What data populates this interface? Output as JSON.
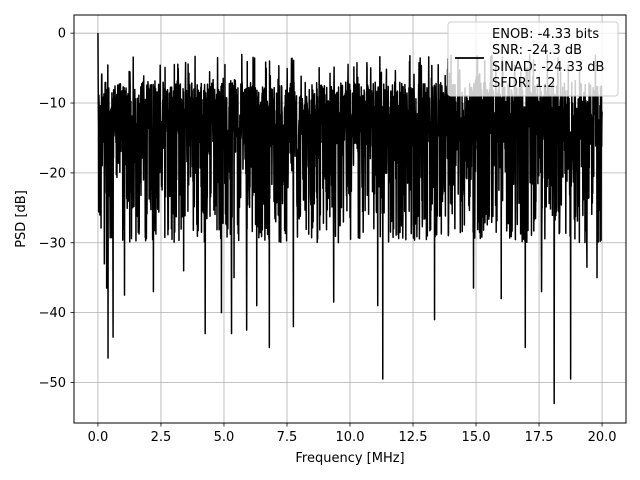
{
  "chart_data": {
    "type": "line",
    "title": "",
    "xlabel": "Frequency [MHz]",
    "ylabel": "PSD [dB]",
    "xlim": [
      -0.95,
      20.95
    ],
    "ylim": [
      -55.8,
      2.6
    ],
    "xticks": [
      0.0,
      2.5,
      5.0,
      7.5,
      10.0,
      12.5,
      15.0,
      17.5,
      20.0
    ],
    "xtick_labels": [
      "0.0",
      "2.5",
      "5.0",
      "7.5",
      "10.0",
      "12.5",
      "15.0",
      "17.5",
      "20.0"
    ],
    "yticks": [
      0,
      -10,
      -20,
      -30,
      -40,
      -50
    ],
    "ytick_labels": [
      "0",
      "−10",
      "−20",
      "−30",
      "−40",
      "−50"
    ],
    "grid": true,
    "legend_placement": "top-right",
    "series": [
      {
        "color": "#000000",
        "x_range": [
          0,
          20
        ],
        "noise_band_db": [
          -30,
          -7
        ],
        "peak": {
          "x": 0.0,
          "y": 0
        },
        "dips": [
          {
            "x": 0.1,
            "y": -12
          },
          {
            "x": 0.25,
            "y": -33
          },
          {
            "x": 0.35,
            "y": -36.5
          },
          {
            "x": 0.4,
            "y": -46.5
          },
          {
            "x": 0.6,
            "y": -43.5
          },
          {
            "x": 1.05,
            "y": -37.5
          },
          {
            "x": 2.2,
            "y": -37
          },
          {
            "x": 3.4,
            "y": -34
          },
          {
            "x": 4.25,
            "y": -43
          },
          {
            "x": 4.9,
            "y": -40
          },
          {
            "x": 5.3,
            "y": -43
          },
          {
            "x": 5.4,
            "y": -35
          },
          {
            "x": 5.9,
            "y": -42.5
          },
          {
            "x": 6.3,
            "y": -39
          },
          {
            "x": 6.8,
            "y": -45
          },
          {
            "x": 7.75,
            "y": -42
          },
          {
            "x": 9.35,
            "y": -38.5
          },
          {
            "x": 11.1,
            "y": -39
          },
          {
            "x": 11.3,
            "y": -49.5
          },
          {
            "x": 13.35,
            "y": -41
          },
          {
            "x": 14.9,
            "y": -36.5
          },
          {
            "x": 16.0,
            "y": -38
          },
          {
            "x": 16.95,
            "y": -45
          },
          {
            "x": 17.6,
            "y": -37
          },
          {
            "x": 18.1,
            "y": -53
          },
          {
            "x": 18.75,
            "y": -49.5
          },
          {
            "x": 19.4,
            "y": -33.5
          },
          {
            "x": 19.8,
            "y": -35
          }
        ]
      }
    ],
    "legend": {
      "lines": [
        "ENOB: -4.33 bits",
        "SNR: -24.3 dB",
        "SINAD: -24.33 dB",
        "SFDR: 1.2"
      ]
    }
  }
}
